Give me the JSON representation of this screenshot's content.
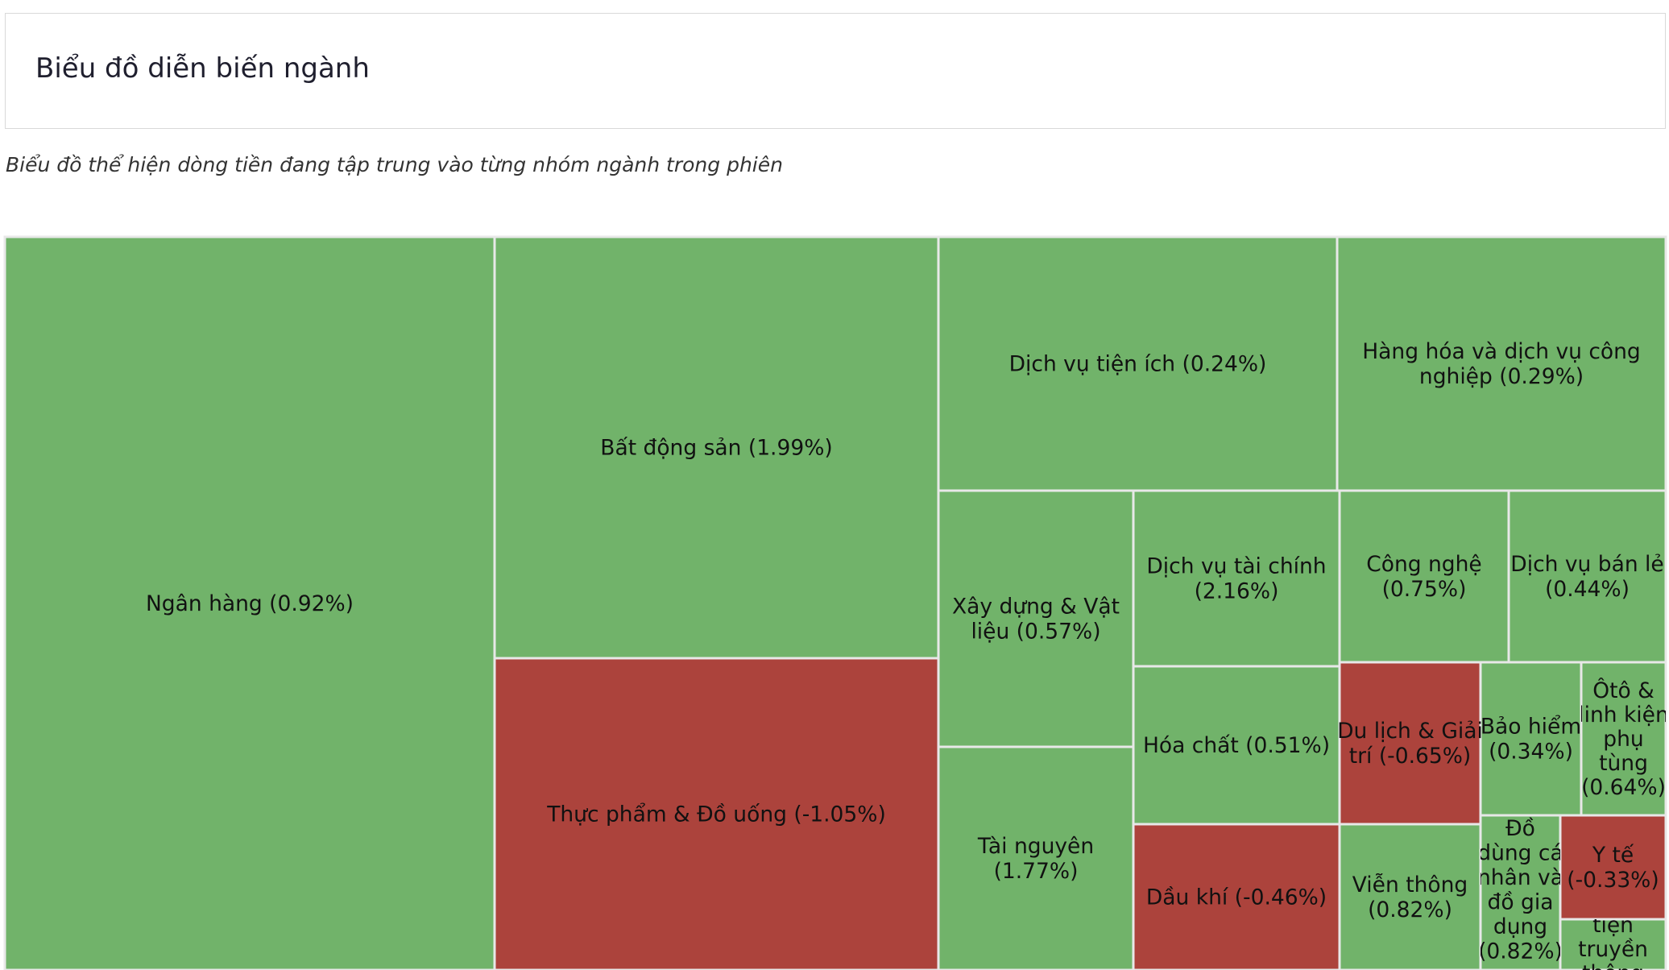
{
  "header": {
    "title": "Biểu đồ diễn biến ngành"
  },
  "subtitle": "Biểu đồ thể hiện dòng tiền đang tập trung vào từng nhóm ngành trong phiên",
  "colors": {
    "positive": "#71b36a",
    "negative": "#ac433c",
    "border": "#e8e8e8"
  },
  "chart_data": {
    "type": "treemap",
    "title": "Biểu đồ diễn biến ngành",
    "subtitle": "Biểu đồ thể hiện dòng tiền đang tập trung vào từng nhóm ngành trong phiên",
    "items": [
      {
        "name": "Ngân hàng",
        "change_pct": 0.92,
        "label_lines": [
          "Ngân hàng (0.92%)"
        ]
      },
      {
        "name": "Bất động sản",
        "change_pct": 1.99,
        "label_lines": [
          "Bất động sản (1.99%)"
        ]
      },
      {
        "name": "Thực phẩm & Đồ uống",
        "change_pct": -1.05,
        "label_lines": [
          "Thực phẩm & Đồ uống (-1.05%)"
        ]
      },
      {
        "name": "Dịch vụ tiện ích",
        "change_pct": 0.24,
        "label_lines": [
          "Dịch vụ tiện ích (0.24%)"
        ]
      },
      {
        "name": "Hàng hóa và dịch vụ công nghiệp",
        "change_pct": 0.29,
        "label_lines": [
          "Hàng hóa và dịch vụ công",
          "nghiệp (0.29%)"
        ]
      },
      {
        "name": "Xây dựng & Vật liệu",
        "change_pct": 0.57,
        "label_lines": [
          "Xây dựng & Vật",
          "liệu (0.57%)"
        ]
      },
      {
        "name": "Tài nguyên",
        "change_pct": 1.77,
        "label_lines": [
          "Tài nguyên",
          "(1.77%)"
        ]
      },
      {
        "name": "Dịch vụ tài chính",
        "change_pct": 2.16,
        "label_lines": [
          "Dịch vụ tài chính",
          "(2.16%)"
        ]
      },
      {
        "name": "Hóa chất",
        "change_pct": 0.51,
        "label_lines": [
          "Hóa chất (0.51%)"
        ]
      },
      {
        "name": "Dầu khí",
        "change_pct": -0.46,
        "label_lines": [
          "Dầu khí (-0.46%)"
        ]
      },
      {
        "name": "Công nghệ",
        "change_pct": 0.75,
        "label_lines": [
          "Công nghệ",
          "(0.75%)"
        ]
      },
      {
        "name": "Dịch vụ bán lẻ",
        "change_pct": 0.44,
        "label_lines": [
          "Dịch vụ bán lẻ",
          "(0.44%)"
        ]
      },
      {
        "name": "Du lịch & Giải trí",
        "change_pct": -0.65,
        "label_lines": [
          "Du lịch & Giải",
          "trí (-0.65%)"
        ]
      },
      {
        "name": "Bảo hiểm",
        "change_pct": 0.34,
        "label_lines": [
          "Bảo hiểm",
          "(0.34%)"
        ]
      },
      {
        "name": "Ôtô & linh kiện phụ tùng",
        "change_pct": 0.64,
        "label_lines": [
          "Ôtô &",
          "linh kiện",
          "phụ",
          "tùng",
          "(0.64%)"
        ]
      },
      {
        "name": "Viễn thông",
        "change_pct": 0.82,
        "label_lines": [
          "Viễn thông",
          "(0.82%)"
        ]
      },
      {
        "name": "Đồ dùng cá nhân và đồ gia dụng",
        "change_pct": 0.82,
        "label_lines": [
          "Đồ",
          "dùng cá",
          "nhân và",
          "đồ gia",
          "dụng",
          "(0.82%)"
        ]
      },
      {
        "name": "Y tế",
        "change_pct": -0.33,
        "label_lines": [
          "Y tế",
          "(-0.33%)"
        ]
      },
      {
        "name": "Truyền thông",
        "change_pct": null,
        "label_lines": [
          "tiện",
          "truyền",
          "thông"
        ]
      }
    ]
  }
}
